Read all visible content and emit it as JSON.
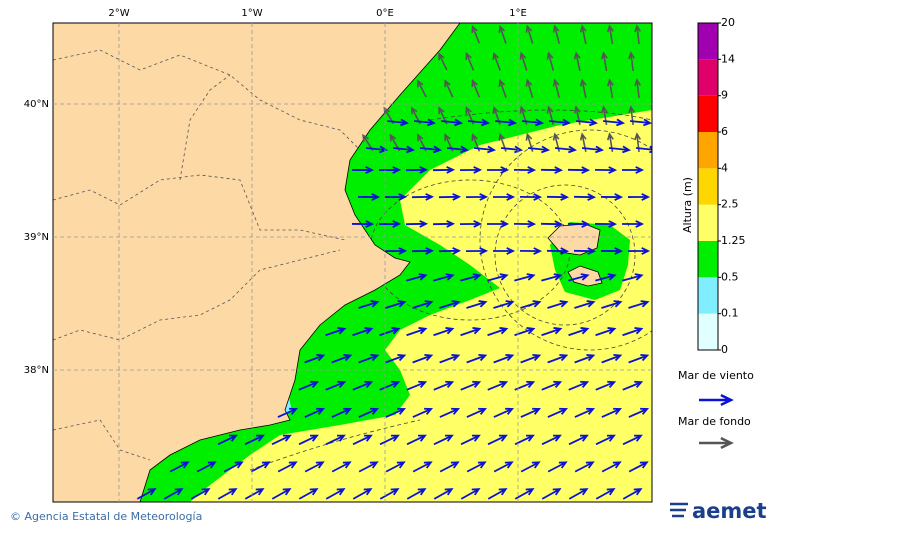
{
  "map": {
    "lon_labels": [
      "2°W",
      "1°W",
      "0°E",
      "1°E"
    ],
    "lat_labels": [
      "40°N",
      "39°N",
      "38°N"
    ],
    "colorbar": {
      "title": "Altura (m)",
      "levels": [
        0,
        0.1,
        0.5,
        1.25,
        2.5,
        4,
        6,
        9,
        14,
        20
      ],
      "colors": [
        "#e0ffff",
        "#80eeff",
        "#00ee00",
        "#ffff66",
        "#ffd700",
        "#ffa500",
        "#ff0000",
        "#e0006a",
        "#a000b0"
      ]
    },
    "legend": [
      {
        "label": "Mar de viento",
        "color": "#0a14d2"
      },
      {
        "label": "Mar de fondo",
        "color": "#555555"
      }
    ],
    "credit": "© Agencia Estatal de Meteorología",
    "logo": "aemet"
  }
}
